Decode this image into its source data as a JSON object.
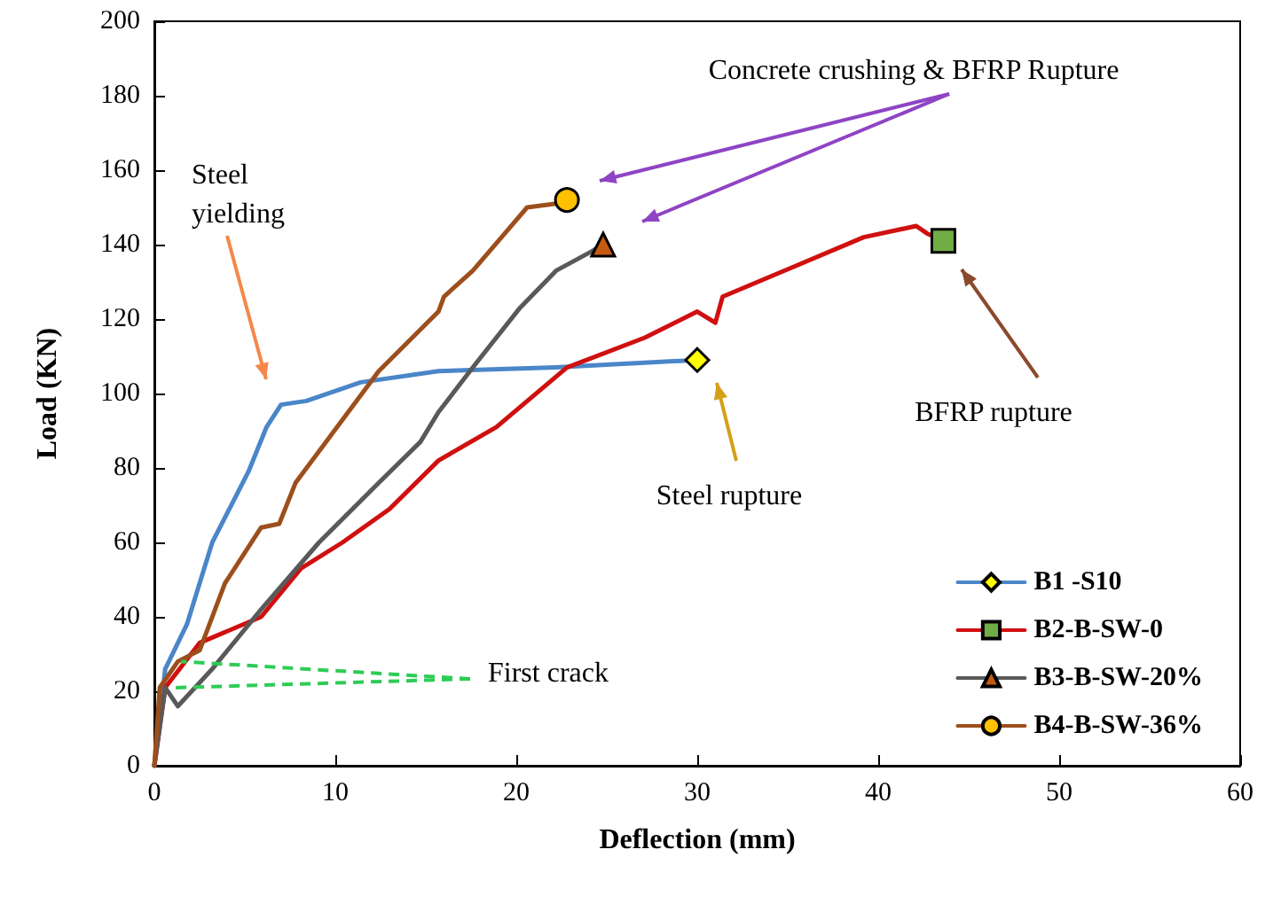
{
  "chart_data": {
    "type": "line",
    "xlabel": "Deflection (mm)",
    "ylabel": "Load (KN)",
    "xlim": [
      0,
      60
    ],
    "xticks": [
      0,
      10,
      20,
      30,
      40,
      50,
      60
    ],
    "ylim": [
      0,
      200
    ],
    "yticks": [
      0,
      20,
      40,
      60,
      80,
      100,
      120,
      140,
      160,
      180,
      200
    ],
    "grid": false,
    "legend": "bottom right",
    "line_style": "solid",
    "series": [
      {
        "name": "B1 -S10",
        "color": "#4a86c8",
        "x": [
          0,
          0.6,
          1.8,
          3.2,
          5.2,
          6.2,
          7,
          8.4,
          11.4,
          15.7,
          22.2,
          30
        ],
        "values": [
          0,
          26,
          38,
          60,
          79,
          91,
          97,
          98,
          103,
          106,
          107,
          109
        ]
      },
      {
        "name": "B2-B-SW-0",
        "color": "#d01010",
        "x": [
          0,
          0.6,
          2.5,
          5.9,
          8.1,
          10.4,
          13,
          15.7,
          18.9,
          22.8,
          27.1,
          30,
          31,
          31.4,
          35.3,
          39.2,
          42.1,
          42.7,
          43.6
        ],
        "values": [
          0,
          21,
          33,
          40,
          53,
          60,
          69,
          82,
          91,
          107,
          115,
          122,
          119,
          126,
          134,
          142,
          145,
          143,
          141
        ]
      },
      {
        "name": "B3-B-SW-20%",
        "color": "#595959",
        "x": [
          0,
          0.6,
          1.3,
          3.2,
          5.9,
          9.1,
          12.4,
          14.7,
          15.7,
          17.6,
          20.2,
          22.2,
          24.1,
          24.8
        ],
        "values": [
          0,
          21,
          16,
          26,
          42,
          60,
          76,
          87,
          95,
          107,
          123,
          133,
          138,
          140
        ]
      },
      {
        "name": "B4-B-SW-36%",
        "color": "#9c4f1c",
        "x": [
          0,
          0.3,
          1.3,
          2.5,
          3.9,
          5.9,
          6.9,
          7.8,
          10.1,
          12.4,
          15.7,
          16,
          17.6,
          20.6,
          22.2,
          22.8
        ],
        "values": [
          0,
          21,
          28,
          31,
          49,
          64,
          65,
          76,
          91,
          106,
          122,
          126,
          133,
          150,
          151,
          152
        ]
      },
      {
        "type": "scatter",
        "marker": "diamond",
        "color": "#ffff00",
        "x": [
          30
        ],
        "values": [
          109
        ]
      },
      {
        "type": "scatter",
        "marker": "square",
        "color": "#70ad47",
        "x": [
          43.6
        ],
        "values": [
          141
        ]
      },
      {
        "type": "scatter",
        "marker": "triangle",
        "color": "#c55a11",
        "x": [
          24.8
        ],
        "values": [
          140
        ]
      },
      {
        "type": "scatter",
        "marker": "circle",
        "color": "#ffc000",
        "x": [
          22.8
        ],
        "values": [
          152
        ]
      }
    ],
    "annotations": [
      "Steel yielding",
      "Concrete crushing & BFRP Rupture",
      "Steel rupture",
      "BFRP rupture",
      {
        "text": "First crack",
        "x": 1.5,
        "y": 28
      }
    ]
  }
}
